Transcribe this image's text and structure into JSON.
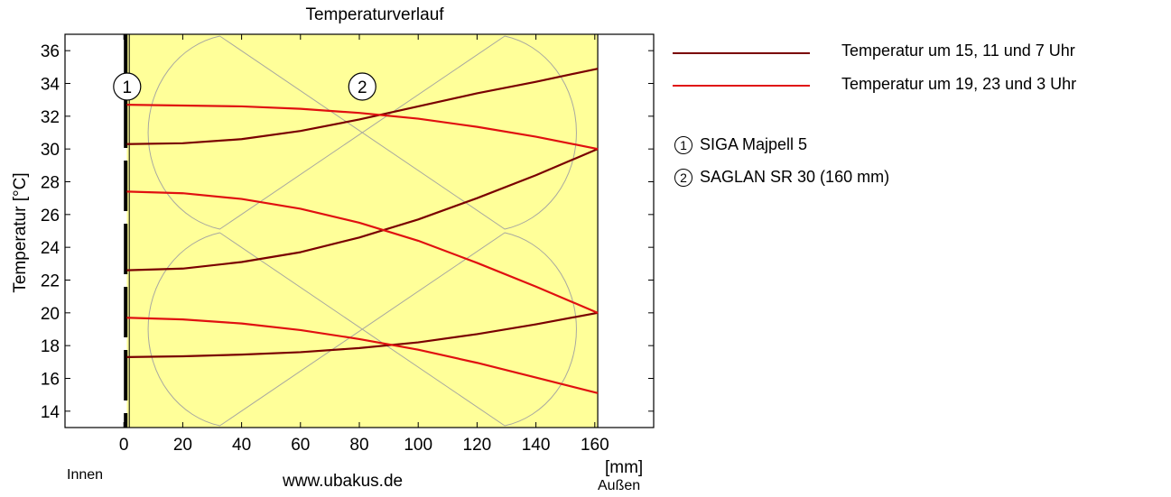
{
  "chart_data": {
    "type": "line",
    "title": "Temperaturverlauf",
    "ylabel": "Temperatur [°C]",
    "xunit": "[mm]",
    "x_inner_label": "Innen",
    "x_outer_label": "Außen",
    "website": "www.ubakus.de",
    "xlim": [
      -20,
      180
    ],
    "ylim": [
      13,
      37
    ],
    "xticks": [
      0,
      20,
      40,
      60,
      80,
      100,
      120,
      140,
      160
    ],
    "yticks": [
      14,
      16,
      18,
      20,
      22,
      24,
      26,
      28,
      30,
      32,
      34,
      36
    ],
    "grid": false,
    "legend_position": "right-outside",
    "layers": [
      {
        "number": "1",
        "name": "SIGA Majpell 5",
        "x_from": 0,
        "x_to": 1,
        "color": "#ffff99"
      },
      {
        "number": "2",
        "name": "SAGLAN SR 30 (160 mm)",
        "x_from": 1,
        "x_to": 161,
        "color": "#ffff99"
      }
    ],
    "series": [
      {
        "name": "Temperatur um 15, 11 und 7 Uhr",
        "color": "#7a0000",
        "x": [
          1,
          20,
          40,
          60,
          80,
          100,
          120,
          140,
          161
        ],
        "curves": [
          [
            30.3,
            30.35,
            30.6,
            31.1,
            31.8,
            32.6,
            33.4,
            34.1,
            34.9
          ],
          [
            22.6,
            22.7,
            23.1,
            23.7,
            24.6,
            25.7,
            27.0,
            28.4,
            30.0
          ],
          [
            17.3,
            17.35,
            17.45,
            17.6,
            17.85,
            18.2,
            18.7,
            19.3,
            20.0
          ]
        ]
      },
      {
        "name": "Temperatur um 19, 23 und 3 Uhr",
        "color": "#e01010",
        "x": [
          1,
          20,
          40,
          60,
          80,
          100,
          120,
          140,
          161
        ],
        "curves": [
          [
            32.7,
            32.65,
            32.6,
            32.45,
            32.2,
            31.85,
            31.35,
            30.75,
            30.0
          ],
          [
            27.4,
            27.3,
            26.95,
            26.35,
            25.5,
            24.4,
            23.05,
            21.6,
            20.0
          ],
          [
            19.7,
            19.6,
            19.35,
            18.95,
            18.4,
            17.75,
            16.95,
            16.05,
            15.1
          ]
        ]
      }
    ]
  }
}
